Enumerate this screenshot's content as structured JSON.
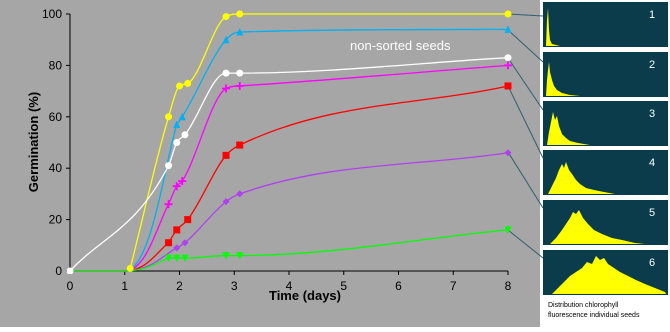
{
  "chart_data": {
    "type": "scatter-curves",
    "x_label": "Time (days)",
    "y_label": "Germination  (%)",
    "annotation": "non-sorted seeds",
    "xlim": [
      0,
      8
    ],
    "xticks": [
      0,
      1,
      2,
      3,
      4,
      5,
      6,
      7,
      8
    ],
    "ylim": [
      0,
      100
    ],
    "yticks": [
      0,
      20,
      40,
      60,
      80,
      100
    ],
    "series": [
      {
        "color": "#ffff00",
        "marker": "circle",
        "x": [
          1.1,
          1.8,
          2.0,
          2.15,
          2.85,
          3.1,
          8
        ],
        "values": [
          1,
          60,
          72,
          73,
          99,
          100,
          100
        ]
      },
      {
        "color": "#00b0f0",
        "marker": "triangle",
        "x": [
          1.95,
          2.05,
          2.85,
          3.1,
          8
        ],
        "values": [
          57,
          60,
          90,
          93,
          94
        ]
      },
      {
        "color": "#ffffff",
        "marker": "circle",
        "x": [
          0,
          1.8,
          1.95,
          2.1,
          2.85,
          3.1,
          8
        ],
        "values": [
          0,
          41,
          50,
          53,
          77,
          77,
          83
        ]
      },
      {
        "color": "#ff00ff",
        "marker": "plus",
        "x": [
          1.8,
          1.95,
          2.05,
          2.85,
          3.1,
          8
        ],
        "values": [
          26,
          33,
          35,
          71,
          72,
          80
        ]
      },
      {
        "color": "#ff0000",
        "marker": "square",
        "x": [
          1.8,
          1.95,
          2.15,
          2.85,
          3.1,
          8
        ],
        "values": [
          11,
          16,
          20,
          45,
          49,
          72
        ]
      },
      {
        "color": "#b040f0",
        "marker": "diamond",
        "x": [
          1.95,
          2.1,
          2.85,
          3.1,
          8
        ],
        "values": [
          9,
          11,
          27,
          30,
          46
        ]
      },
      {
        "color": "#00ff00",
        "marker": "triangle-down",
        "x": [
          1.8,
          1.95,
          2.1,
          2.85,
          3.1,
          8
        ],
        "values": [
          5,
          5,
          5,
          6,
          6,
          16
        ]
      }
    ]
  },
  "insets": {
    "labels": [
      "1",
      "2",
      "3",
      "4",
      "5",
      "6"
    ],
    "caption_lines": [
      "Distribution chlorophyll",
      "fluorescence individual seeds"
    ]
  }
}
